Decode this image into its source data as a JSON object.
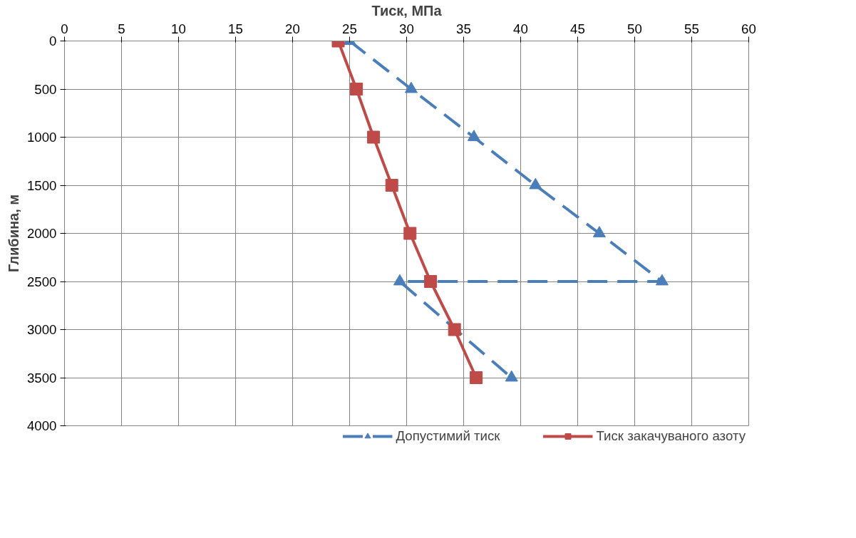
{
  "chart_data": {
    "type": "line",
    "xlabel": "Тиск, МПа",
    "ylabel": "Глибина, м",
    "xlim": [
      0,
      60
    ],
    "xticks": [
      0,
      5,
      10,
      15,
      20,
      25,
      30,
      35,
      40,
      45,
      50,
      55,
      60
    ],
    "ylim": [
      4000,
      0
    ],
    "yticks": [
      0,
      500,
      1000,
      1500,
      2000,
      2500,
      3000,
      3500,
      4000
    ],
    "grid": true,
    "legend": "bottom",
    "series": [
      {
        "name": "Допустимий тиск",
        "color": "#4a7ebb",
        "marker": "triangle",
        "line_style": "dashed",
        "x": [
          25.0,
          30.4,
          35.9,
          41.3,
          46.9,
          52.4,
          29.4,
          39.2
        ],
        "values": [
          0,
          500,
          1000,
          1500,
          2000,
          2500,
          2500,
          3500
        ]
      },
      {
        "name": "Тиск закачуваного азоту",
        "color": "#be4b48",
        "marker": "square",
        "line_style": "solid",
        "x": [
          24.0,
          25.6,
          27.1,
          28.7,
          30.3,
          32.1,
          34.2,
          36.1
        ],
        "values": [
          0,
          500,
          1000,
          1500,
          2000,
          2500,
          3000,
          3500
        ]
      }
    ]
  }
}
